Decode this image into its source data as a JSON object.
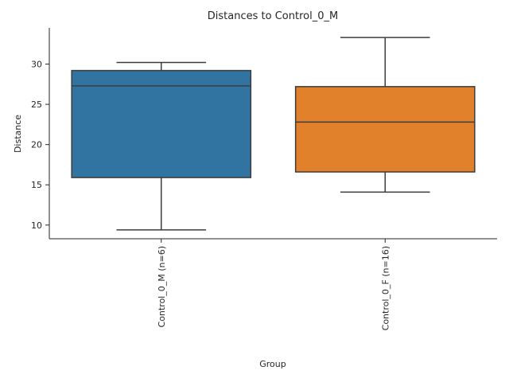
{
  "chart_data": {
    "type": "box",
    "title": "Distances to Control_0_M",
    "xlabel": "Group",
    "ylabel": "Distance",
    "ylim": [
      8.3,
      34.5
    ],
    "yticks": [
      "10",
      "15",
      "20",
      "25",
      "30"
    ],
    "grid": false,
    "categories": [
      "Control_0_M (n=6)",
      "Control_0_F (n=16)"
    ],
    "boxes": [
      {
        "category": "Control_0_M (n=6)",
        "whisker_low": 9.4,
        "q1": 15.9,
        "median": 27.3,
        "q3": 29.2,
        "whisker_high": 30.2,
        "color": "#3174a1"
      },
      {
        "category": "Control_0_F (n=16)",
        "whisker_low": 14.1,
        "q1": 16.6,
        "median": 22.8,
        "q3": 27.2,
        "whisker_high": 33.3,
        "color": "#e1812c"
      }
    ]
  }
}
